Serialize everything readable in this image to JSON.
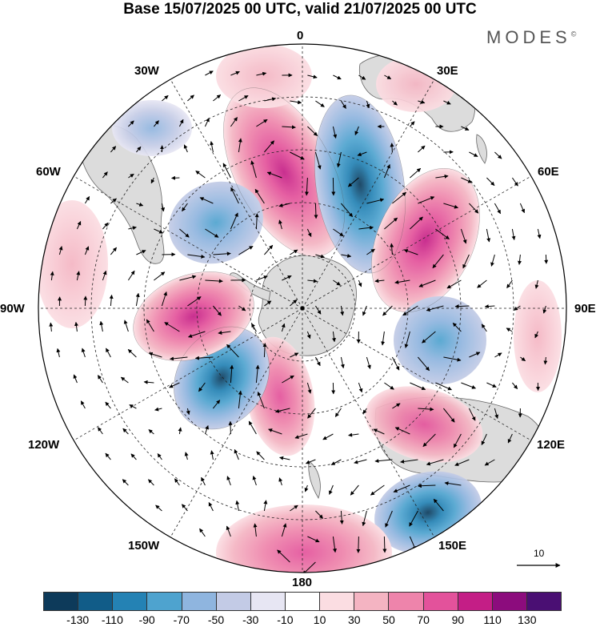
{
  "title": "Base 15/07/2025 00 UTC, valid 21/07/2025 00 UTC",
  "brand": {
    "name": "MODES",
    "mark": "©"
  },
  "longitude_labels": {
    "lon_0": "0",
    "lon_30e": "30E",
    "lon_60e": "60E",
    "lon_90e": "90E",
    "lon_120e": "120E",
    "lon_150e": "150E",
    "lon_180": "180",
    "lon_150w": "150W",
    "lon_120w": "120W",
    "lon_90w": "90W",
    "lon_60w": "60W",
    "lon_30w": "30W"
  },
  "projection": "south-polar-stereographic",
  "vector_reference": {
    "label": "10"
  },
  "colorbar": {
    "colors": [
      "#0d3a5a",
      "#115c88",
      "#2482b4",
      "#4ea3cf",
      "#8fb5df",
      "#c3cbe6",
      "#e7e6f3",
      "#ffffff",
      "#fbdde2",
      "#f4b4c2",
      "#ee84ab",
      "#e3529b",
      "#c41e86",
      "#8c0c7d",
      "#4a0f73"
    ],
    "ticks": [
      "-130",
      "-110",
      "-90",
      "-70",
      "-50",
      "-30",
      "-10",
      "10",
      "30",
      "50",
      "70",
      "90",
      "110",
      "130"
    ]
  },
  "colors": {
    "land": "#dcdcdc",
    "coast": "#666666",
    "grid": "#222222",
    "arrow": "#000000"
  }
}
